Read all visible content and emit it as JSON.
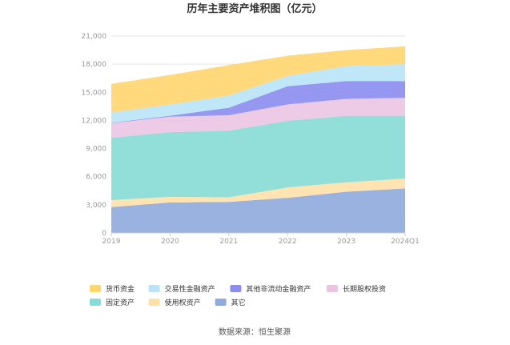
{
  "chart_data": {
    "type": "area",
    "stacked": true,
    "title": "历年主要资产堆积图（亿元）",
    "source": "数据来源：恒生聚源",
    "categories": [
      "2019",
      "2020",
      "2021",
      "2022",
      "2023",
      "2024Q1"
    ],
    "y_ticks": [
      "0",
      "3,000",
      "6,000",
      "9,000",
      "12,000",
      "15,000",
      "18,000",
      "21,000"
    ],
    "ylim": [
      0,
      21000
    ],
    "grid": true,
    "legend_position": "bottom",
    "series": [
      {
        "name": "其它",
        "color": "#8FAADC",
        "values": [
          2750,
          3250,
          3300,
          3750,
          4400,
          4750
        ]
      },
      {
        "name": "使用权资产",
        "color": "#FFE0A8",
        "values": [
          750,
          600,
          500,
          1100,
          1000,
          1050
        ]
      },
      {
        "name": "固定资产",
        "color": "#86DCD6",
        "values": [
          6650,
          6900,
          7100,
          7100,
          7100,
          6700
        ]
      },
      {
        "name": "长期股权投资",
        "color": "#EBC4E2",
        "values": [
          1550,
          1650,
          1650,
          1750,
          1800,
          1900
        ]
      },
      {
        "name": "其他非流动金融资产",
        "color": "#8B8CF0",
        "values": [
          50,
          100,
          800,
          1950,
          1900,
          1800
        ]
      },
      {
        "name": "交易性金融资产",
        "color": "#B9E4F6",
        "values": [
          1100,
          1200,
          1300,
          1100,
          1600,
          1800
        ]
      },
      {
        "name": "货币资金",
        "color": "#FFD56E",
        "values": [
          3050,
          3150,
          3250,
          2150,
          1700,
          1900
        ]
      }
    ],
    "legend_order": [
      "货币资金",
      "交易性金融资产",
      "其他非流动金融资产",
      "长期股权投资",
      "固定资产",
      "使用权资产",
      "其它"
    ]
  }
}
